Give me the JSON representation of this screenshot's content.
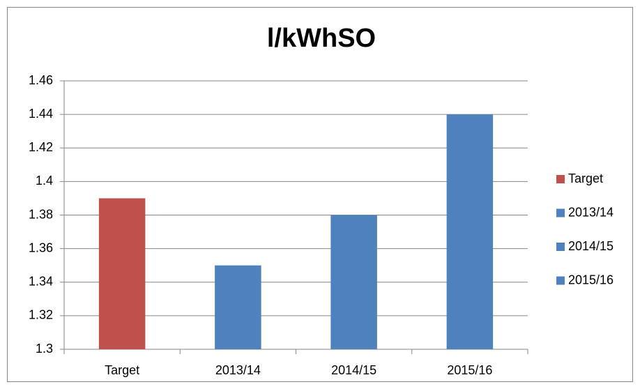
{
  "chart_data": {
    "type": "bar",
    "title": "l/kWhSO",
    "categories": [
      "Target",
      "2013/14",
      "2014/15",
      "2015/16"
    ],
    "values": [
      1.39,
      1.35,
      1.38,
      1.44
    ],
    "colors": [
      "#c0504d",
      "#4f81bd",
      "#4f81bd",
      "#4f81bd"
    ],
    "ylim": [
      1.3,
      1.46
    ],
    "yticks": [
      1.3,
      1.32,
      1.34,
      1.36,
      1.38,
      1.4,
      1.42,
      1.44,
      1.46
    ],
    "grid": true,
    "legend": "right"
  }
}
